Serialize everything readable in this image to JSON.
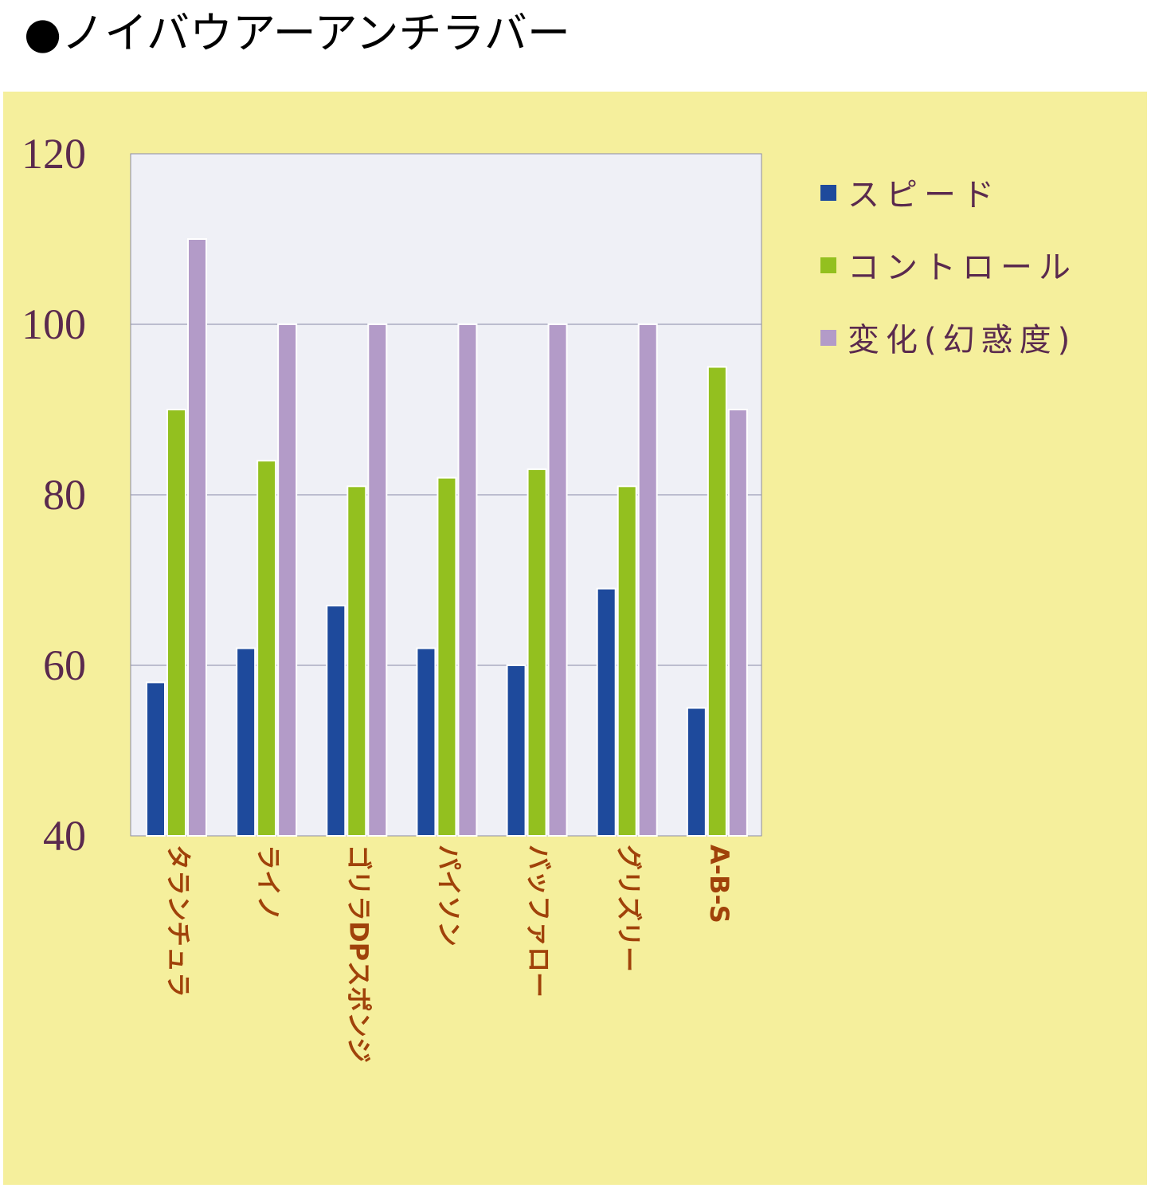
{
  "chart_data": {
    "type": "bar",
    "title": "●ノイバウアーアンチラバー",
    "categories": [
      "タランチュラ",
      "ライノ",
      "ゴリラDPスポンジ",
      "パイソン",
      "バッファロー",
      "グリズリー",
      "A-B-S"
    ],
    "series": [
      {
        "name": "スピード",
        "color": "#1e4a9c",
        "values": [
          58,
          62,
          67,
          62,
          60,
          69,
          55
        ]
      },
      {
        "name": "コントロール",
        "color": "#93c01f",
        "values": [
          90,
          84,
          81,
          82,
          83,
          81,
          95
        ]
      },
      {
        "name": "変化(幻惑度)",
        "color": "#b39bc8",
        "values": [
          110,
          100,
          100,
          100,
          100,
          100,
          90
        ]
      }
    ],
    "ylim": [
      40,
      120
    ],
    "yticks": [
      40,
      60,
      80,
      100,
      120
    ],
    "grid": true,
    "legend": "right"
  }
}
